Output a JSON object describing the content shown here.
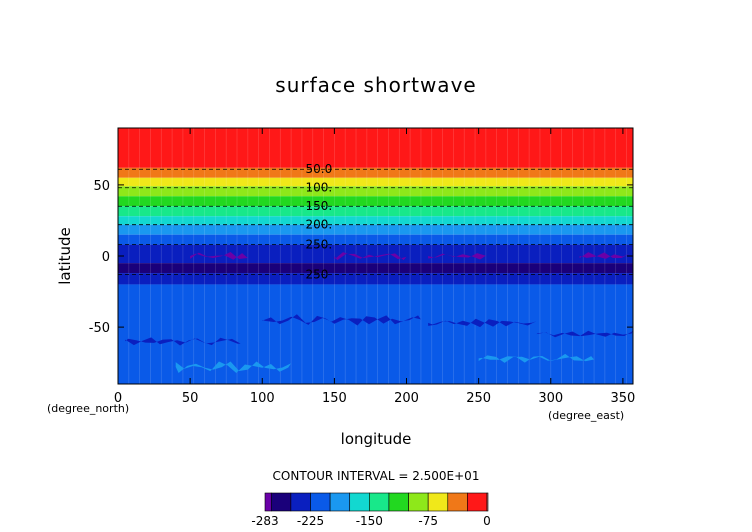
{
  "chart_data": {
    "type": "heatmap",
    "title": "surface shortwave",
    "xlabel": "longitude",
    "ylabel": "latitude",
    "x_unit": "(degree_east)",
    "y_unit": "(degree_north)",
    "xlim": [
      0,
      357
    ],
    "ylim": [
      -90,
      90
    ],
    "x_ticks": [
      0,
      50,
      100,
      150,
      200,
      250,
      300,
      350
    ],
    "y_ticks": [
      50,
      0,
      -50
    ],
    "contour_interval_text": "CONTOUR INTERVAL = 2.500E+01",
    "contour_labels": [
      "50.0",
      "100.",
      "150.",
      "200.",
      "250.",
      "250"
    ],
    "contour_label_latitudes": [
      61,
      48,
      35,
      22,
      8,
      -13
    ],
    "colorbar_labels": [
      "-283",
      "-225",
      "-150",
      "-75",
      "0"
    ],
    "colorbar_label_values": [
      -283,
      -225,
      -150,
      -75,
      0
    ],
    "levels": [
      -283,
      -275,
      -250,
      -225,
      -200,
      -175,
      -150,
      -125,
      -100,
      -75,
      -50,
      -25,
      0
    ],
    "colors": [
      "#6a00a8",
      "#1a007a",
      "#0a1fbf",
      "#0a5ae8",
      "#1a98f0",
      "#12d8d0",
      "#18e88a",
      "#22d820",
      "#8ee81a",
      "#f0e81a",
      "#f07818",
      "#ff1818",
      "#ff9a9a"
    ],
    "latitude_band_values": [
      {
        "lat_range": [
          62,
          90
        ],
        "value": -10
      },
      {
        "lat_range": [
          55,
          62
        ],
        "value": -37
      },
      {
        "lat_range": [
          49,
          55
        ],
        "value": -60
      },
      {
        "lat_range": [
          42,
          49
        ],
        "value": -87
      },
      {
        "lat_range": [
          35,
          42
        ],
        "value": -112
      },
      {
        "lat_range": [
          28,
          35
        ],
        "value": -137
      },
      {
        "lat_range": [
          22,
          28
        ],
        "value": -162
      },
      {
        "lat_range": [
          15,
          22
        ],
        "value": -187
      },
      {
        "lat_range": [
          8,
          15
        ],
        "value": -212
      },
      {
        "lat_range": [
          -5,
          8
        ],
        "value": -237
      },
      {
        "lat_range": [
          -12,
          -5
        ],
        "value": -262
      },
      {
        "lat_range": [
          -20,
          -12
        ],
        "value": -237
      },
      {
        "lat_range": [
          -90,
          -20
        ],
        "value": -212
      }
    ]
  }
}
